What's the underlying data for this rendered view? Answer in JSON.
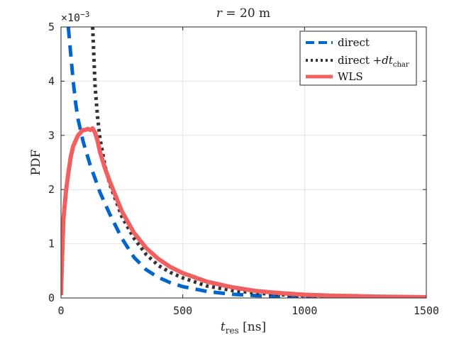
{
  "chart_data": {
    "type": "line",
    "title_prefix": "r",
    "title_rest": " = 20 m",
    "xlabel_main": "t",
    "xlabel_sub": "res",
    "xlabel_unit": " [ns]",
    "ylabel": "PDF",
    "y_multiplier_base": "×10",
    "y_multiplier_exp": "−3",
    "xlim": [
      0,
      1500
    ],
    "ylim": [
      0,
      5
    ],
    "x_ticks": [
      0,
      500,
      1000,
      1500
    ],
    "x_tick_labels": [
      "0",
      "500",
      "1000",
      "1500"
    ],
    "y_ticks": [
      0,
      1,
      2,
      3,
      4,
      5
    ],
    "y_tick_labels": [
      "0",
      "1",
      "2",
      "3",
      "4",
      "5"
    ],
    "grid": true,
    "legend_position": "top-right",
    "series": [
      {
        "name": "direct",
        "color": "#0066cc",
        "style": "dashed",
        "x": [
          30,
          40,
          50,
          60,
          70,
          80,
          90,
          100,
          120,
          140,
          160,
          180,
          200,
          250,
          300,
          350,
          400,
          450,
          500,
          600,
          700,
          800,
          900,
          1000,
          1200,
          1500
        ],
        "y": [
          5.0,
          4.5,
          4.0,
          3.6,
          3.3,
          3.1,
          2.9,
          2.75,
          2.45,
          2.2,
          1.95,
          1.75,
          1.55,
          1.1,
          0.75,
          0.52,
          0.38,
          0.28,
          0.21,
          0.12,
          0.07,
          0.045,
          0.03,
          0.02,
          0.01,
          0.004
        ]
      },
      {
        "name_main": "direct +",
        "name_italic": "dt",
        "name_sub": "char",
        "color": "#333333",
        "style": "dotted",
        "x": [
          130,
          140,
          150,
          160,
          180,
          200,
          250,
          300,
          350,
          400,
          450,
          500,
          600,
          700,
          800,
          900,
          1000,
          1200,
          1500
        ],
        "y": [
          5.0,
          3.9,
          3.35,
          2.95,
          2.45,
          2.1,
          1.5,
          1.1,
          0.8,
          0.6,
          0.47,
          0.37,
          0.22,
          0.14,
          0.09,
          0.06,
          0.04,
          0.02,
          0.008
        ]
      },
      {
        "name": "WLS",
        "color": "#f06060",
        "style": "solid",
        "x": [
          0,
          5,
          10,
          20,
          30,
          40,
          50,
          60,
          70,
          80,
          90,
          100,
          110,
          120,
          130,
          140,
          150,
          160,
          180,
          200,
          250,
          300,
          350,
          400,
          450,
          500,
          600,
          700,
          800,
          900,
          1000,
          1100,
          1200,
          1300,
          1500
        ],
        "y": [
          0.05,
          0.8,
          1.45,
          1.95,
          2.3,
          2.6,
          2.8,
          2.9,
          3.0,
          3.05,
          3.1,
          3.1,
          3.12,
          3.1,
          3.13,
          3.05,
          2.9,
          2.7,
          2.4,
          2.15,
          1.6,
          1.2,
          0.92,
          0.72,
          0.57,
          0.46,
          0.3,
          0.2,
          0.13,
          0.09,
          0.06,
          0.045,
          0.035,
          0.025,
          0.015
        ]
      }
    ]
  }
}
